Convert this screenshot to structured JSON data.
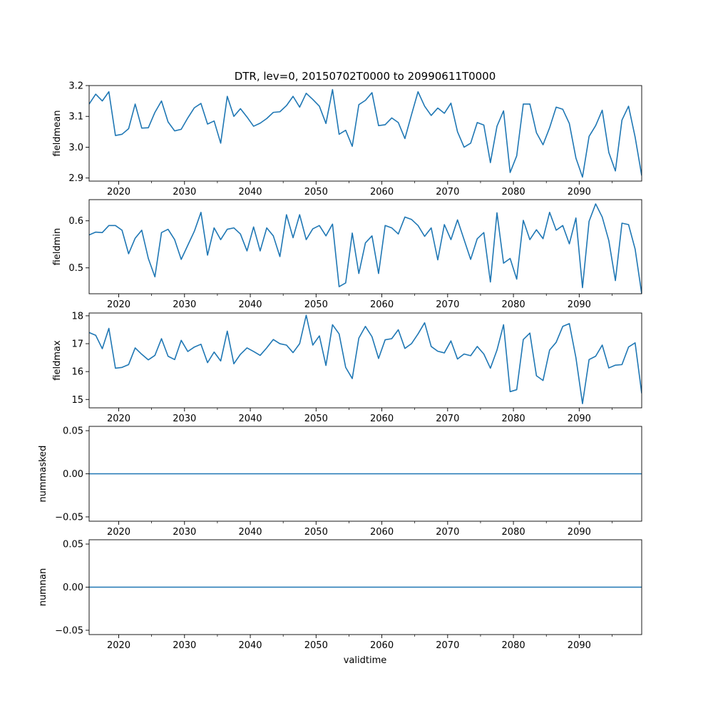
{
  "title": "DTR, lev=0, 20150702T0000 to 20990611T0000",
  "xlabel": "validtime",
  "colors": {
    "line": "#1f77b4",
    "axis": "#000000"
  },
  "chart_data": [
    {
      "type": "line",
      "ylabel": "fieldmean",
      "xlim": [
        2015.5,
        2099.5
      ],
      "ylim": [
        2.89,
        3.2
      ],
      "xticks": [
        2020,
        2030,
        2040,
        2050,
        2060,
        2070,
        2080,
        2090
      ],
      "xtick_labels": [
        "2020",
        "2030",
        "2040",
        "2050",
        "2060",
        "2070",
        "2080",
        "2090"
      ],
      "yticks": [
        2.9,
        3.0,
        3.1,
        3.2
      ],
      "ytick_labels": [
        "2.9",
        "3.0",
        "3.1",
        "3.2"
      ],
      "x_start": 2015.5,
      "x_step": 1,
      "values": [
        3.14,
        3.172,
        3.15,
        3.18,
        3.038,
        3.042,
        3.06,
        3.14,
        3.062,
        3.063,
        3.113,
        3.15,
        3.082,
        3.053,
        3.058,
        3.095,
        3.128,
        3.142,
        3.075,
        3.085,
        3.013,
        3.165,
        3.1,
        3.125,
        3.098,
        3.068,
        3.078,
        3.093,
        3.113,
        3.115,
        3.135,
        3.165,
        3.13,
        3.175,
        3.155,
        3.133,
        3.077,
        3.187,
        3.042,
        3.055,
        3.003,
        3.138,
        3.152,
        3.177,
        3.07,
        3.073,
        3.095,
        3.08,
        3.028,
        3.105,
        3.18,
        3.133,
        3.103,
        3.127,
        3.11,
        3.143,
        3.05,
        3.0,
        3.013,
        3.08,
        3.072,
        2.95,
        3.068,
        3.118,
        2.918,
        2.972,
        3.14,
        3.14,
        3.047,
        3.008,
        3.063,
        3.13,
        3.123,
        3.077,
        2.965,
        2.903,
        3.035,
        3.07,
        3.12,
        2.983,
        2.923,
        3.088,
        3.133,
        3.033,
        2.908
      ]
    },
    {
      "type": "line",
      "ylabel": "fieldmin",
      "xlim": [
        2015.5,
        2099.5
      ],
      "ylim": [
        0.445,
        0.645
      ],
      "xticks": [
        2020,
        2030,
        2040,
        2050,
        2060,
        2070,
        2080,
        2090
      ],
      "xtick_labels": [
        "2020",
        "2030",
        "2040",
        "2050",
        "2060",
        "2070",
        "2080",
        "2090"
      ],
      "yticks": [
        0.5,
        0.6
      ],
      "ytick_labels": [
        "0.5",
        "0.6"
      ],
      "x_start": 2015.5,
      "x_step": 1,
      "values": [
        0.57,
        0.576,
        0.575,
        0.59,
        0.59,
        0.58,
        0.53,
        0.563,
        0.58,
        0.52,
        0.481,
        0.575,
        0.582,
        0.56,
        0.518,
        0.548,
        0.578,
        0.618,
        0.527,
        0.585,
        0.56,
        0.582,
        0.585,
        0.572,
        0.536,
        0.587,
        0.536,
        0.585,
        0.568,
        0.524,
        0.613,
        0.564,
        0.613,
        0.56,
        0.583,
        0.59,
        0.568,
        0.593,
        0.46,
        0.468,
        0.574,
        0.488,
        0.553,
        0.568,
        0.488,
        0.59,
        0.585,
        0.572,
        0.608,
        0.603,
        0.59,
        0.567,
        0.585,
        0.517,
        0.592,
        0.56,
        0.602,
        0.56,
        0.518,
        0.562,
        0.575,
        0.47,
        0.617,
        0.51,
        0.52,
        0.476,
        0.601,
        0.56,
        0.581,
        0.562,
        0.618,
        0.58,
        0.59,
        0.551,
        0.606,
        0.458,
        0.599,
        0.636,
        0.608,
        0.558,
        0.473,
        0.595,
        0.592,
        0.54,
        0.445
      ]
    },
    {
      "type": "line",
      "ylabel": "fieldmax",
      "xlim": [
        2015.5,
        2099.5
      ],
      "ylim": [
        14.7,
        18.1
      ],
      "xticks": [
        2020,
        2030,
        2040,
        2050,
        2060,
        2070,
        2080,
        2090
      ],
      "xtick_labels": [
        "2020",
        "2030",
        "2040",
        "2050",
        "2060",
        "2070",
        "2080",
        "2090"
      ],
      "yticks": [
        15,
        16,
        17,
        18
      ],
      "ytick_labels": [
        "15",
        "16",
        "17",
        "18"
      ],
      "x_start": 2015.5,
      "x_step": 1,
      "values": [
        17.4,
        17.3,
        16.82,
        17.55,
        16.12,
        16.15,
        16.25,
        16.85,
        16.62,
        16.42,
        16.58,
        17.18,
        16.55,
        16.43,
        17.12,
        16.72,
        16.88,
        16.98,
        16.32,
        16.7,
        16.38,
        17.45,
        16.28,
        16.62,
        16.85,
        16.72,
        16.58,
        16.85,
        17.15,
        17.0,
        16.95,
        16.68,
        17.0,
        18.02,
        16.95,
        17.28,
        16.22,
        17.68,
        17.35,
        16.15,
        15.75,
        17.2,
        17.62,
        17.25,
        16.47,
        17.14,
        17.18,
        17.5,
        16.83,
        17.0,
        17.35,
        17.75,
        16.9,
        16.73,
        16.67,
        17.1,
        16.45,
        16.63,
        16.57,
        16.9,
        16.63,
        16.12,
        16.77,
        17.68,
        15.28,
        15.35,
        17.15,
        17.38,
        15.85,
        15.68,
        16.77,
        17.05,
        17.62,
        17.72,
        16.5,
        14.85,
        16.43,
        16.55,
        16.95,
        16.13,
        16.23,
        16.25,
        16.88,
        17.03,
        15.22
      ]
    },
    {
      "type": "line",
      "ylabel": "nummasked",
      "xlim": [
        2015.5,
        2099.5
      ],
      "ylim": [
        -0.055,
        0.055
      ],
      "xticks": [
        2020,
        2030,
        2040,
        2050,
        2060,
        2070,
        2080,
        2090
      ],
      "xtick_labels": [
        "2020",
        "2030",
        "2040",
        "2050",
        "2060",
        "2070",
        "2080",
        "2090"
      ],
      "yticks": [
        -0.05,
        0.0,
        0.05
      ],
      "ytick_labels": [
        "−0.05",
        "0.00",
        "0.05"
      ],
      "x_start": 2015.5,
      "x_step": 84,
      "values": [
        0,
        0
      ]
    },
    {
      "type": "line",
      "ylabel": "numnan",
      "xlim": [
        2015.5,
        2099.5
      ],
      "ylim": [
        -0.055,
        0.055
      ],
      "xticks": [
        2020,
        2030,
        2040,
        2050,
        2060,
        2070,
        2080,
        2090
      ],
      "xtick_labels": [
        "2020",
        "2030",
        "2040",
        "2050",
        "2060",
        "2070",
        "2080",
        "2090"
      ],
      "yticks": [
        -0.05,
        0.0,
        0.05
      ],
      "ytick_labels": [
        "−0.05",
        "0.00",
        "0.05"
      ],
      "x_start": 2015.5,
      "x_step": 84,
      "values": [
        0,
        0
      ]
    }
  ]
}
